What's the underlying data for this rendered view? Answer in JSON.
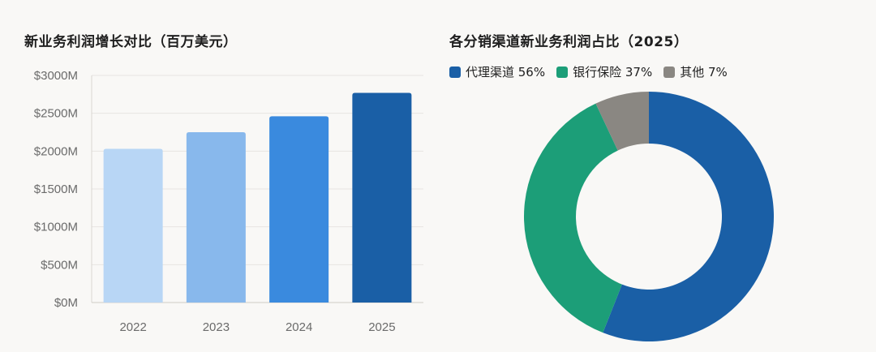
{
  "chart_data": [
    {
      "type": "bar",
      "title": "新业务利润增长对比（百万美元）",
      "categories": [
        "2022",
        "2023",
        "2024",
        "2025"
      ],
      "values": [
        2030,
        2250,
        2460,
        2770
      ],
      "colors": [
        "#b8d6f5",
        "#88b8ec",
        "#3a8ade",
        "#1a5fa6"
      ],
      "ylim": [
        0,
        3000
      ],
      "yticks": [
        0,
        500,
        1000,
        1500,
        2000,
        2500,
        3000
      ],
      "ytick_labels": [
        "$0M",
        "$500M",
        "$1000M",
        "$1500M",
        "$2000M",
        "$2500M",
        "$3000M"
      ],
      "grid": true
    },
    {
      "type": "pie",
      "subtype": "donut",
      "title": "各分销渠道新业务利润占比（2025）",
      "legend_position": "top-left",
      "slices": [
        {
          "label": "代理渠道 56%",
          "value": 56,
          "color": "#1a5fa6"
        },
        {
          "label": "银行保险 37%",
          "value": 37,
          "color": "#1c9e78"
        },
        {
          "label": "其他 7%",
          "value": 7,
          "color": "#8a8782"
        }
      ]
    }
  ]
}
